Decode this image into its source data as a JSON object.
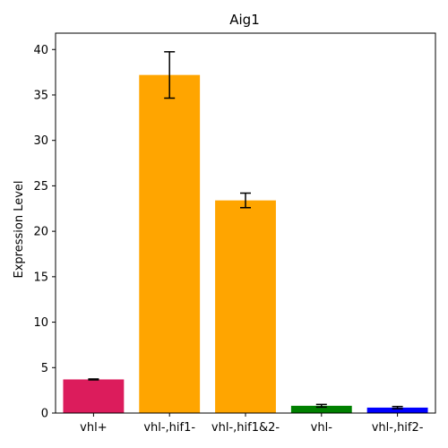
{
  "chart_data": {
    "type": "bar",
    "title": "Aig1",
    "xlabel": "",
    "ylabel": "Expression Level",
    "ylim": [
      0,
      41.8
    ],
    "yticks": [
      0,
      5,
      10,
      15,
      20,
      25,
      30,
      35,
      40
    ],
    "grid": false,
    "categories": [
      "vhl+",
      "vhl-,hif1-",
      "vhl-,hif1&2-",
      "vhl-",
      "vhl-,hif2-"
    ],
    "values": [
      3.7,
      37.2,
      23.4,
      0.8,
      0.6
    ],
    "errors": [
      0.05,
      2.55,
      0.8,
      0.15,
      0.12
    ],
    "colors": [
      "#dc1c5c",
      "#ffa500",
      "#ffa500",
      "#008000",
      "#0000ff"
    ]
  }
}
